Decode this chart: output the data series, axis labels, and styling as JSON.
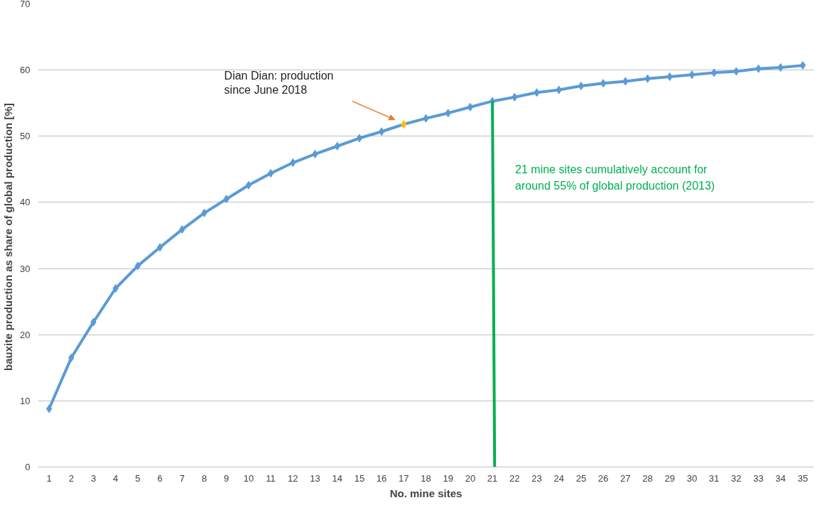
{
  "chart_data": {
    "type": "line",
    "xlabel": "No. mine sites",
    "ylabel": "bauxite production as share of  global production [%]",
    "xlim": [
      0.5,
      35.5
    ],
    "ylim": [
      0,
      70
    ],
    "xticks": [
      1,
      2,
      3,
      4,
      5,
      6,
      7,
      8,
      9,
      10,
      11,
      12,
      13,
      14,
      15,
      16,
      17,
      18,
      19,
      20,
      21,
      22,
      23,
      24,
      25,
      26,
      27,
      28,
      29,
      30,
      31,
      32,
      33,
      34,
      35
    ],
    "yticks": [
      0,
      10,
      20,
      30,
      40,
      50,
      60,
      70
    ],
    "grid": "y",
    "marker": "diamond",
    "line_style": "solid",
    "series": [
      {
        "color": "#5b9bd5",
        "colors": [
          "#5b9bd5",
          "#5b9bd5",
          "#5b9bd5",
          "#5b9bd5",
          "#5b9bd5",
          "#5b9bd5",
          "#5b9bd5",
          "#5b9bd5",
          "#5b9bd5",
          "#5b9bd5",
          "#5b9bd5",
          "#5b9bd5",
          "#5b9bd5",
          "#5b9bd5",
          "#5b9bd5",
          "#5b9bd5",
          "#ffc000",
          "#5b9bd5",
          "#5b9bd5",
          "#5b9bd5",
          "#5b9bd5",
          "#5b9bd5",
          "#5b9bd5",
          "#5b9bd5",
          "#5b9bd5",
          "#5b9bd5",
          "#5b9bd5",
          "#5b9bd5",
          "#5b9bd5",
          "#5b9bd5",
          "#5b9bd5",
          "#5b9bd5",
          "#5b9bd5",
          "#5b9bd5",
          "#5b9bd5"
        ],
        "x": [
          1,
          2,
          3,
          4,
          5,
          6,
          7,
          8,
          9,
          10,
          11,
          12,
          13,
          14,
          15,
          16,
          17,
          18,
          19,
          20,
          21,
          22,
          23,
          24,
          25,
          26,
          27,
          28,
          29,
          30,
          31,
          32,
          33,
          34,
          35
        ],
        "values": [
          8.8,
          16.5,
          21.9,
          27.0,
          30.4,
          33.2,
          35.9,
          38.4,
          40.5,
          42.6,
          44.4,
          46.0,
          47.3,
          48.5,
          49.7,
          50.7,
          51.8,
          52.7,
          53.5,
          54.4,
          55.3,
          55.9,
          56.6,
          57.0,
          57.6,
          58.0,
          58.3,
          58.7,
          59.0,
          59.3,
          59.6,
          59.8,
          60.2,
          60.4,
          60.7
        ]
      },
      {
        "type": "line",
        "marker": "none",
        "color": "#00b050",
        "x": [
          21.1,
          21
        ],
        "values": [
          0,
          55.3
        ]
      }
    ],
    "annotations": [
      "Dian Dian: production\nsince June 2018",
      "21 mine sites cumulatively account for\naround 55% of global production (2013)"
    ]
  }
}
